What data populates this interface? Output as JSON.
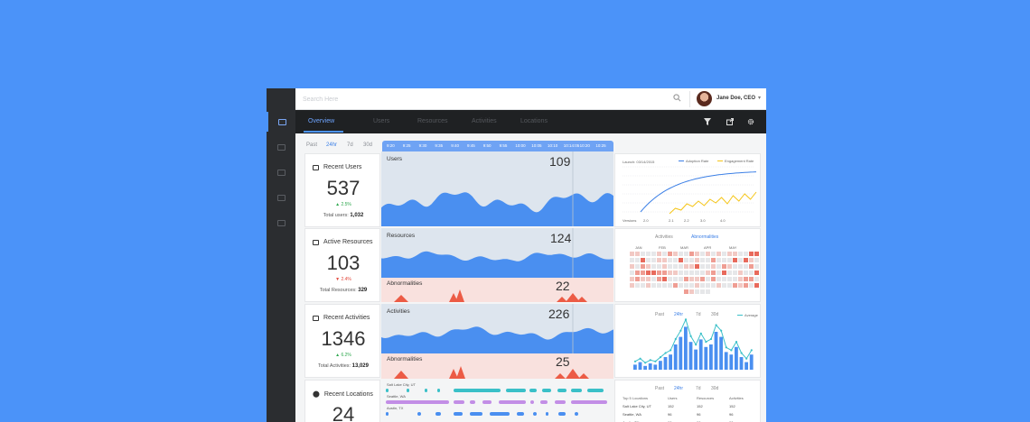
{
  "search": {
    "placeholder": "Search Here"
  },
  "user": {
    "name": "Jane Doe, CEO"
  },
  "nav": {
    "tabs": [
      "Overview",
      "Users",
      "Resources",
      "Activities",
      "Locations"
    ]
  },
  "timeframe": {
    "options": [
      "Past",
      "24hr",
      "7d",
      "30d"
    ],
    "selected": "24hr"
  },
  "timeline": [
    "9:20",
    "9:25",
    "9:30",
    "9:35",
    "9:40",
    "9:45",
    "9:50",
    "9:55",
    "10:00",
    "10:05",
    "10:10",
    "10:14:05",
    "10:20",
    "10:25"
  ],
  "cards": [
    {
      "title": "Recent Users",
      "value": "537",
      "delta": "2.5%",
      "trend": "up",
      "total_label": "Total users:",
      "total": "1,032"
    },
    {
      "title": "Active Resources",
      "value": "103",
      "delta": "2.4%",
      "trend": "down",
      "total_label": "Total Resources:",
      "total": "329"
    },
    {
      "title": "Recent Activities",
      "value": "1346",
      "delta": "6.2%",
      "trend": "up",
      "total_label": "Total Activities:",
      "total": "13,029"
    },
    {
      "title": "Recent Locations",
      "value": "24"
    }
  ],
  "panels": {
    "users": {
      "label": "Users",
      "value": "109"
    },
    "resources": {
      "label": "Resources",
      "value": "124"
    },
    "res_abnormal": {
      "label": "Abnormalities",
      "value": "22"
    },
    "activities": {
      "label": "Activities",
      "value": "226"
    },
    "act_abnormal": {
      "label": "Abnormalities",
      "value": "25"
    }
  },
  "adoption_chart": {
    "launch_label": "Launch: 03/14/2015",
    "legend": [
      "Adoption Rate",
      "Engagement Rate"
    ],
    "versions_label": "Versions",
    "versions": [
      "2.0",
      "2.1",
      "2.2",
      "3.0",
      "4.0"
    ],
    "colors": {
      "adoption": "#3b7fe6",
      "engagement": "#f5c518"
    }
  },
  "heatmap": {
    "tabs": [
      "Activities",
      "Abnormalities"
    ],
    "active_tab": "Abnormalities",
    "months": [
      "JAN",
      "FEB",
      "MAR",
      "APR",
      "MAY"
    ]
  },
  "activity_bars": {
    "tabs": [
      "Past",
      "24hr",
      "7d",
      "30d"
    ],
    "active_tab": "24hr",
    "legend": "Average"
  },
  "locations": {
    "rows": [
      "Salt Lake City, UT",
      "Seattle, WA",
      "Austin, TX"
    ],
    "tabs": [
      "Past",
      "24hr",
      "7d",
      "30d"
    ],
    "active_tab": "24hr",
    "table_headers": [
      "Top 5 Locations",
      "Users",
      "Resources",
      "Activities"
    ],
    "table_rows": [
      [
        "Salt Lake City, UT",
        "152",
        "152",
        "152"
      ],
      [
        "Seattle, WA",
        "96",
        "96",
        "96"
      ],
      [
        "Austin, TX",
        "96",
        "96",
        "96"
      ]
    ]
  }
}
